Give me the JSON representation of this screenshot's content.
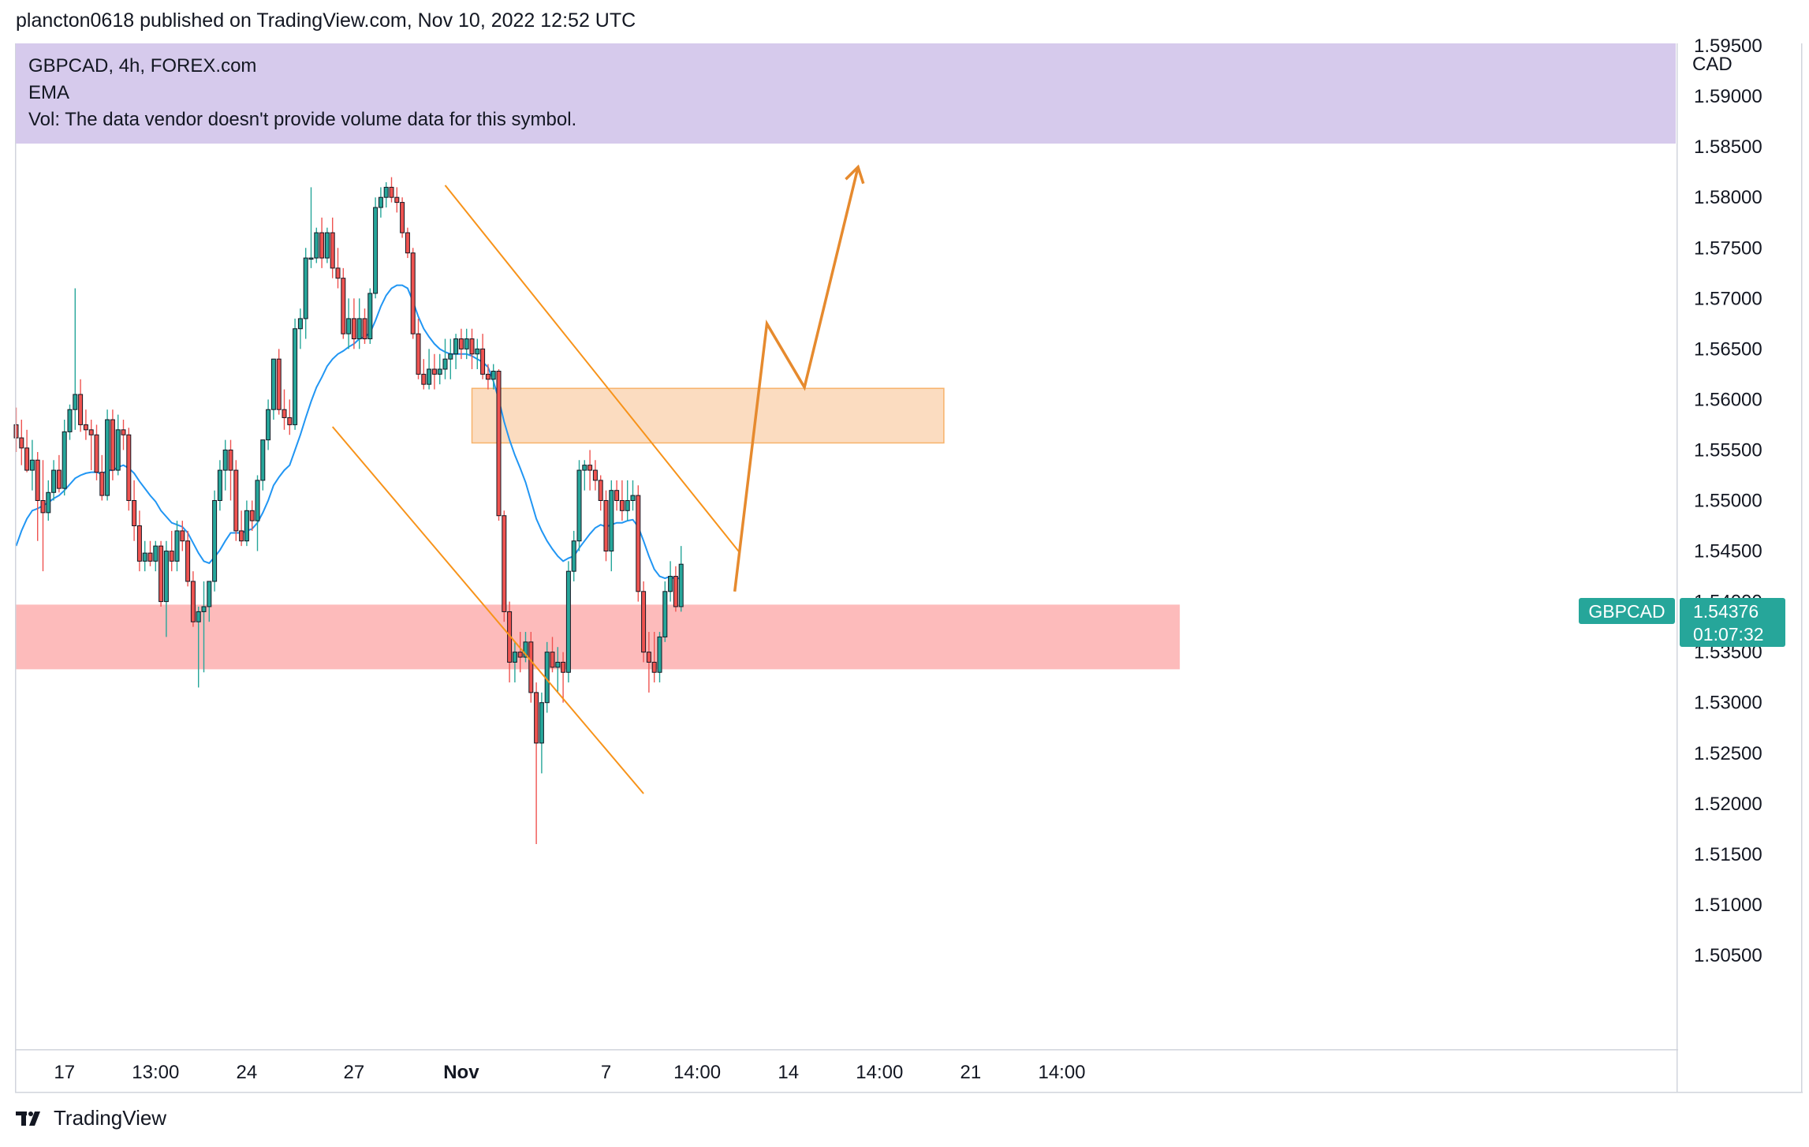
{
  "header": {
    "published_by": "plancton0618 published on TradingView.com, Nov 10, 2022 12:52 UTC"
  },
  "legend": {
    "line1": "GBPCAD, 4h, FOREX.com",
    "line2": "EMA",
    "line3": "Vol: The data vendor doesn't provide volume data for this symbol."
  },
  "price_axis": {
    "currency": "CAD"
  },
  "price_tag": {
    "symbol": "GBPCAD",
    "price": "1.54376",
    "countdown": "01:07:32",
    "color": "#26a69a"
  },
  "footer": {
    "brand": "TradingView"
  },
  "colors": {
    "up": "#26a69a",
    "down": "#ef5350",
    "ema": "#2196f3",
    "trend": "#f7931a",
    "projection": "#e68a2e",
    "resistance_zone": "#fbdcc0",
    "support_zone": "#fdbbbb"
  },
  "chart_data": {
    "type": "candlestick",
    "symbol": "GBPCAD",
    "interval": "4h",
    "ylim": [
      1.5,
      1.597
    ],
    "y_ticks": [
      "1.59500",
      "1.59000",
      "1.58500",
      "1.58000",
      "1.57500",
      "1.57000",
      "1.56500",
      "1.56000",
      "1.55500",
      "1.55000",
      "1.54500",
      "1.54000",
      "1.53500",
      "1.53000",
      "1.52500",
      "1.52000",
      "1.51500",
      "1.51000",
      "1.50500"
    ],
    "x_ticks": [
      {
        "label": "17",
        "bold": false,
        "bar": 9
      },
      {
        "label": "13:00",
        "bold": false,
        "bar": 26
      },
      {
        "label": "24",
        "bold": false,
        "bar": 43
      },
      {
        "label": "27",
        "bold": false,
        "bar": 63
      },
      {
        "label": "Nov",
        "bold": true,
        "bar": 83
      },
      {
        "label": "7",
        "bold": false,
        "bar": 110
      },
      {
        "label": "14:00",
        "bold": false,
        "bar": 127
      },
      {
        "label": "14",
        "bold": false,
        "bar": 144
      },
      {
        "label": "14:00",
        "bold": false,
        "bar": 161
      },
      {
        "label": "21",
        "bold": false,
        "bar": 178
      },
      {
        "label": "14:00",
        "bold": false,
        "bar": 195
      }
    ],
    "ohlc": [
      [
        1.5575,
        1.5592,
        1.5548,
        1.5562
      ],
      [
        1.5562,
        1.558,
        1.5535,
        1.5552
      ],
      [
        1.5552,
        1.557,
        1.5528,
        1.553
      ],
      [
        1.553,
        1.556,
        1.551,
        1.554
      ],
      [
        1.554,
        1.5548,
        1.546,
        1.55
      ],
      [
        1.55,
        1.554,
        1.543,
        1.5488
      ],
      [
        1.5488,
        1.552,
        1.548,
        1.5508
      ],
      [
        1.5508,
        1.554,
        1.55,
        1.553
      ],
      [
        1.553,
        1.5545,
        1.5508,
        1.5512
      ],
      [
        1.5512,
        1.558,
        1.5505,
        1.5568
      ],
      [
        1.5568,
        1.5595,
        1.556,
        1.559
      ],
      [
        1.559,
        1.571,
        1.557,
        1.5605
      ],
      [
        1.5605,
        1.562,
        1.5568,
        1.5575
      ],
      [
        1.5575,
        1.559,
        1.556,
        1.557
      ],
      [
        1.557,
        1.558,
        1.553,
        1.5565
      ],
      [
        1.5565,
        1.5575,
        1.552,
        1.5528
      ],
      [
        1.5528,
        1.5545,
        1.55,
        1.5505
      ],
      [
        1.5505,
        1.559,
        1.55,
        1.558
      ],
      [
        1.558,
        1.559,
        1.552,
        1.553
      ],
      [
        1.553,
        1.5585,
        1.5525,
        1.557
      ],
      [
        1.557,
        1.558,
        1.555,
        1.5565
      ],
      [
        1.5565,
        1.5572,
        1.549,
        1.55
      ],
      [
        1.55,
        1.552,
        1.546,
        1.5475
      ],
      [
        1.5475,
        1.549,
        1.543,
        1.544
      ],
      [
        1.544,
        1.546,
        1.543,
        1.5448
      ],
      [
        1.5448,
        1.546,
        1.5435,
        1.544
      ],
      [
        1.544,
        1.546,
        1.543,
        1.5455
      ],
      [
        1.5455,
        1.546,
        1.5395,
        1.54
      ],
      [
        1.54,
        1.546,
        1.5365,
        1.545
      ],
      [
        1.545,
        1.547,
        1.543,
        1.544
      ],
      [
        1.544,
        1.548,
        1.543,
        1.547
      ],
      [
        1.547,
        1.548,
        1.545,
        1.546
      ],
      [
        1.546,
        1.547,
        1.5415,
        1.542
      ],
      [
        1.542,
        1.543,
        1.5375,
        1.538
      ],
      [
        1.538,
        1.5395,
        1.5315,
        1.539
      ],
      [
        1.539,
        1.542,
        1.533,
        1.5395
      ],
      [
        1.5395,
        1.542,
        1.538,
        1.542
      ],
      [
        1.542,
        1.551,
        1.541,
        1.55
      ],
      [
        1.55,
        1.554,
        1.549,
        1.553
      ],
      [
        1.553,
        1.556,
        1.551,
        1.555
      ],
      [
        1.555,
        1.556,
        1.55,
        1.553
      ],
      [
        1.553,
        1.554,
        1.546,
        1.547
      ],
      [
        1.547,
        1.549,
        1.5455,
        1.546
      ],
      [
        1.546,
        1.55,
        1.5455,
        1.549
      ],
      [
        1.549,
        1.55,
        1.547,
        1.548
      ],
      [
        1.548,
        1.5525,
        1.545,
        1.552
      ],
      [
        1.552,
        1.556,
        1.551,
        1.556
      ],
      [
        1.556,
        1.56,
        1.555,
        1.559
      ],
      [
        1.559,
        1.564,
        1.558,
        1.564
      ],
      [
        1.564,
        1.565,
        1.5585,
        1.559
      ],
      [
        1.559,
        1.561,
        1.557,
        1.5582
      ],
      [
        1.5582,
        1.56,
        1.5565,
        1.5575
      ],
      [
        1.5575,
        1.568,
        1.557,
        1.567
      ],
      [
        1.567,
        1.569,
        1.565,
        1.568
      ],
      [
        1.568,
        1.575,
        1.566,
        1.574
      ],
      [
        1.574,
        1.581,
        1.573,
        1.574
      ],
      [
        1.574,
        1.577,
        1.5735,
        1.5765
      ],
      [
        1.5765,
        1.578,
        1.573,
        1.574
      ],
      [
        1.574,
        1.577,
        1.5735,
        1.5765
      ],
      [
        1.5765,
        1.578,
        1.572,
        1.573
      ],
      [
        1.573,
        1.575,
        1.571,
        1.572
      ],
      [
        1.572,
        1.573,
        1.566,
        1.5665
      ],
      [
        1.5665,
        1.57,
        1.565,
        1.568
      ],
      [
        1.568,
        1.57,
        1.565,
        1.566
      ],
      [
        1.566,
        1.57,
        1.565,
        1.568
      ],
      [
        1.568,
        1.569,
        1.5655,
        1.566
      ],
      [
        1.566,
        1.571,
        1.5655,
        1.5705
      ],
      [
        1.5705,
        1.58,
        1.57,
        1.579
      ],
      [
        1.579,
        1.581,
        1.578,
        1.58
      ],
      [
        1.58,
        1.5815,
        1.579,
        1.581
      ],
      [
        1.581,
        1.582,
        1.5795,
        1.58
      ],
      [
        1.58,
        1.581,
        1.5785,
        1.5795
      ],
      [
        1.5795,
        1.58,
        1.576,
        1.5765
      ],
      [
        1.5765,
        1.577,
        1.574,
        1.5745
      ],
      [
        1.5745,
        1.575,
        1.566,
        1.5665
      ],
      [
        1.5665,
        1.568,
        1.562,
        1.5625
      ],
      [
        1.5625,
        1.564,
        1.561,
        1.5615
      ],
      [
        1.5615,
        1.565,
        1.561,
        1.563
      ],
      [
        1.563,
        1.5645,
        1.561,
        1.5625
      ],
      [
        1.5625,
        1.5645,
        1.5615,
        1.563
      ],
      [
        1.563,
        1.566,
        1.562,
        1.564
      ],
      [
        1.564,
        1.566,
        1.562,
        1.5645
      ],
      [
        1.5645,
        1.5665,
        1.563,
        1.566
      ],
      [
        1.566,
        1.567,
        1.564,
        1.565
      ],
      [
        1.565,
        1.567,
        1.564,
        1.566
      ],
      [
        1.566,
        1.567,
        1.563,
        1.5645
      ],
      [
        1.5645,
        1.566,
        1.563,
        1.565
      ],
      [
        1.565,
        1.5665,
        1.562,
        1.5625
      ],
      [
        1.5625,
        1.5635,
        1.561,
        1.562
      ],
      [
        1.562,
        1.5635,
        1.561,
        1.5628
      ],
      [
        1.5628,
        1.563,
        1.548,
        1.5485
      ],
      [
        1.5485,
        1.549,
        1.538,
        1.539
      ],
      [
        1.539,
        1.54,
        1.532,
        1.534
      ],
      [
        1.534,
        1.536,
        1.532,
        1.535
      ],
      [
        1.535,
        1.537,
        1.533,
        1.5345
      ],
      [
        1.5345,
        1.537,
        1.534,
        1.536
      ],
      [
        1.536,
        1.537,
        1.53,
        1.531
      ],
      [
        1.531,
        1.532,
        1.516,
        1.526
      ],
      [
        1.526,
        1.531,
        1.523,
        1.53
      ],
      [
        1.53,
        1.536,
        1.529,
        1.535
      ],
      [
        1.535,
        1.5365,
        1.533,
        1.5335
      ],
      [
        1.5335,
        1.5355,
        1.531,
        1.534
      ],
      [
        1.534,
        1.535,
        1.53,
        1.533
      ],
      [
        1.533,
        1.544,
        1.532,
        1.543
      ],
      [
        1.543,
        1.547,
        1.542,
        1.546
      ],
      [
        1.546,
        1.554,
        1.545,
        1.553
      ],
      [
        1.553,
        1.554,
        1.551,
        1.5535
      ],
      [
        1.5535,
        1.555,
        1.551,
        1.553
      ],
      [
        1.553,
        1.554,
        1.551,
        1.552
      ],
      [
        1.552,
        1.5525,
        1.549,
        1.55
      ],
      [
        1.55,
        1.551,
        1.544,
        1.545
      ],
      [
        1.545,
        1.552,
        1.543,
        1.551
      ],
      [
        1.551,
        1.552,
        1.549,
        1.55
      ],
      [
        1.55,
        1.552,
        1.548,
        1.549
      ],
      [
        1.549,
        1.552,
        1.548,
        1.55
      ],
      [
        1.55,
        1.552,
        1.549,
        1.5505
      ],
      [
        1.5505,
        1.5515,
        1.54,
        1.541
      ],
      [
        1.541,
        1.542,
        1.534,
        1.535
      ],
      [
        1.535,
        1.537,
        1.531,
        1.534
      ],
      [
        1.534,
        1.537,
        1.532,
        1.533
      ],
      [
        1.533,
        1.537,
        1.532,
        1.5365
      ],
      [
        1.5365,
        1.542,
        1.536,
        1.541
      ],
      [
        1.541,
        1.544,
        1.54,
        1.5425
      ],
      [
        1.5425,
        1.5435,
        1.539,
        1.5395
      ],
      [
        1.5395,
        1.5455,
        1.539,
        1.5437
      ]
    ],
    "ema": {
      "name": "EMA",
      "values": [
        1.5455,
        1.547,
        1.5482,
        1.549,
        1.5492,
        1.5495,
        1.5498,
        1.5502,
        1.5505,
        1.551,
        1.5516,
        1.5522,
        1.5525,
        1.5527,
        1.5528,
        1.5528,
        1.5526,
        1.553,
        1.553,
        1.5533,
        1.5535,
        1.5532,
        1.5527,
        1.5519,
        1.5512,
        1.5505,
        1.5499,
        1.549,
        1.5484,
        1.5478,
        1.5476,
        1.5474,
        1.5468,
        1.5458,
        1.5448,
        1.544,
        1.5438,
        1.5444,
        1.5451,
        1.546,
        1.5468,
        1.5468,
        1.5468,
        1.547,
        1.5472,
        1.5478,
        1.5488,
        1.55,
        1.5515,
        1.5523,
        1.553,
        1.5535,
        1.555,
        1.5565,
        1.5582,
        1.5598,
        1.5612,
        1.5622,
        1.5633,
        1.564,
        1.5645,
        1.5648,
        1.5652,
        1.5655,
        1.566,
        1.5662,
        1.5666,
        1.5678,
        1.5692,
        1.5703,
        1.571,
        1.5713,
        1.5713,
        1.571,
        1.5697,
        1.5682,
        1.567,
        1.5662,
        1.5655,
        1.565,
        1.5647,
        1.5645,
        1.5645,
        1.5645,
        1.5645,
        1.5643,
        1.564,
        1.5637,
        1.5632,
        1.5618,
        1.56,
        1.5578,
        1.556,
        1.5545,
        1.5532,
        1.5518,
        1.55,
        1.5482,
        1.547,
        1.546,
        1.5452,
        1.5445,
        1.544,
        1.5443,
        1.5445,
        1.5453,
        1.546,
        1.5467,
        1.5473,
        1.5476,
        1.5474,
        1.5476,
        1.5478,
        1.5478,
        1.548,
        1.5481,
        1.5474,
        1.546,
        1.5445,
        1.5432,
        1.5425,
        1.5423,
        1.5425,
        1.5422,
        1.5424
      ]
    },
    "zones": [
      {
        "name": "resistance",
        "from_bar": 85,
        "to_bar": 173,
        "y_low": 1.5557,
        "y_high": 1.5611
      },
      {
        "name": "support",
        "from_bar": 0,
        "to_bar": 217,
        "y_low": 1.5333,
        "y_high": 1.5397
      }
    ],
    "trendlines": [
      {
        "from": [
          80,
          1.5812
        ],
        "to": [
          135,
          1.5448
        ]
      },
      {
        "from": [
          59,
          1.5573
        ],
        "to": [
          117,
          1.521
        ]
      }
    ],
    "projection": [
      [
        134,
        1.541
      ],
      [
        140,
        1.5675
      ],
      [
        147,
        1.5612
      ],
      [
        157,
        1.583
      ]
    ]
  }
}
